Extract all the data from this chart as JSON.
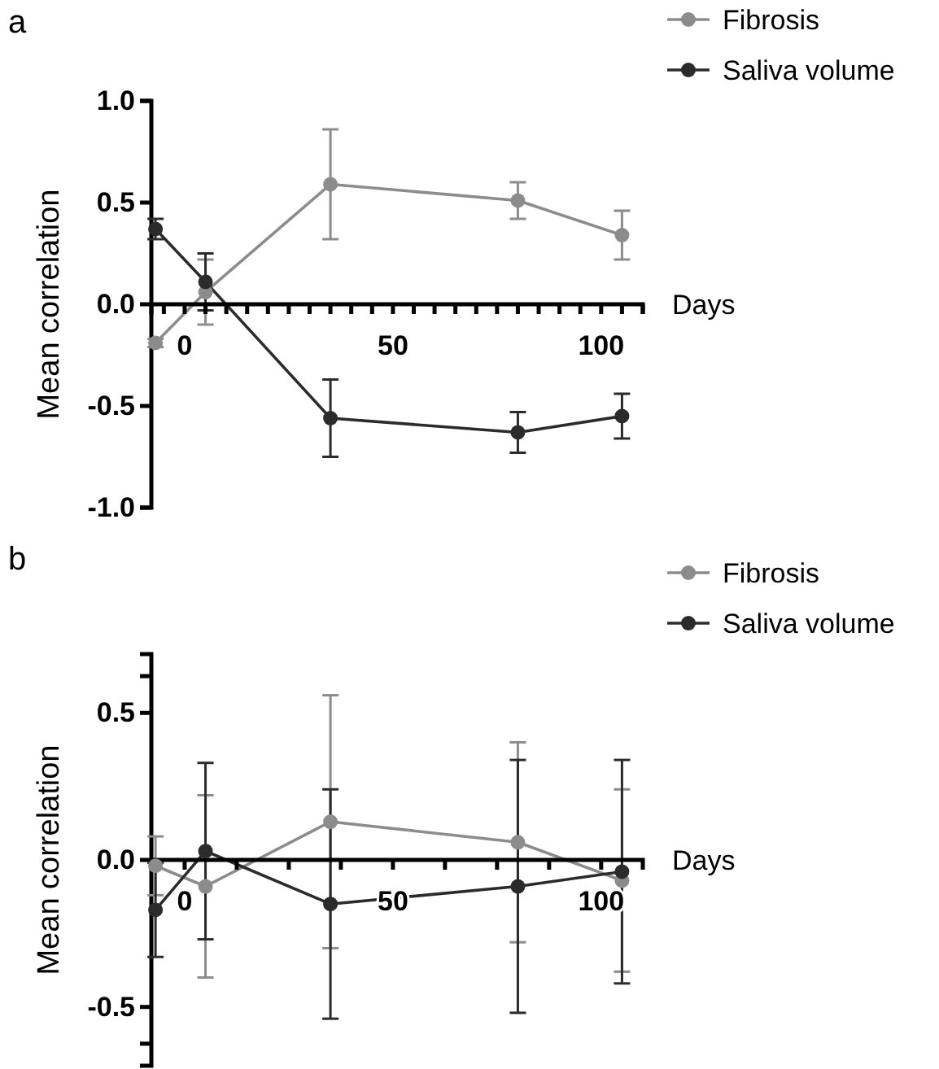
{
  "chart_data": [
    {
      "type": "line",
      "xlabel": "Days",
      "ylabel": "Mean correlation",
      "annotations": [
        "a"
      ],
      "x": [
        -7,
        5,
        35,
        80,
        105
      ],
      "xlim": [
        -8,
        110
      ],
      "ylim": [
        -1,
        1
      ],
      "xticks": [
        {
          "value": -5,
          "label": null
        },
        0,
        {
          "value": 5,
          "label": null
        },
        {
          "value": 10,
          "label": null
        },
        {
          "value": 15,
          "label": null
        },
        {
          "value": 20,
          "label": null
        },
        {
          "value": 25,
          "label": null
        },
        {
          "value": 30,
          "label": null
        },
        {
          "value": 35,
          "label": null
        },
        {
          "value": 40,
          "label": null
        },
        {
          "value": 45,
          "label": null
        },
        50,
        {
          "value": 55,
          "label": null
        },
        {
          "value": 60,
          "label": null
        },
        {
          "value": 65,
          "label": null
        },
        {
          "value": 70,
          "label": null
        },
        {
          "value": 75,
          "label": null
        },
        {
          "value": 80,
          "label": null
        },
        {
          "value": 85,
          "label": null
        },
        {
          "value": 90,
          "label": null
        },
        {
          "value": 95,
          "label": null
        },
        100,
        {
          "value": 105,
          "label": null
        },
        {
          "value": 110,
          "label": null
        }
      ],
      "yticks": [
        {
          "value": -1,
          "label": "-1.0"
        },
        {
          "value": -0.5,
          "label": "-0.5"
        },
        {
          "value": 0,
          "label": "0.0"
        },
        {
          "value": 0.5,
          "label": "0.5"
        },
        {
          "value": 1,
          "label": "1.0"
        }
      ],
      "grid": false,
      "legend": "top right",
      "marker": "circle",
      "line_style": "solid",
      "series": [
        {
          "name": "Fibrosis",
          "color": "#8c8c8c",
          "values": [
            -0.19,
            0.06,
            0.59,
            0.51,
            0.34
          ],
          "errors": [
            0.02,
            0.16,
            0.27,
            0.09,
            0.12
          ]
        },
        {
          "name": "Saliva volume",
          "color": "#2b2b2b",
          "values": [
            0.37,
            0.11,
            -0.56,
            -0.63,
            -0.55
          ],
          "errors": [
            0.05,
            0.14,
            0.19,
            0.1,
            0.11
          ]
        }
      ]
    },
    {
      "type": "line",
      "xlabel": "Days",
      "ylabel": "Mean correlation",
      "annotations": [
        "b"
      ],
      "x": [
        -7,
        5,
        35,
        80,
        105
      ],
      "xlim": [
        -8,
        110
      ],
      "ylim": [
        -0.7,
        0.7
      ],
      "xticks": [
        0,
        {
          "value": 12.5,
          "label": null
        },
        {
          "value": 25,
          "label": null
        },
        {
          "value": 37.5,
          "label": null
        },
        50,
        {
          "value": 62.5,
          "label": null
        },
        {
          "value": 75,
          "label": null
        },
        {
          "value": 87.5,
          "label": null
        },
        100
      ],
      "yticks": [
        {
          "value": -0.625,
          "label": null
        },
        {
          "value": -0.5,
          "label": "-0.5"
        },
        {
          "value": 0,
          "label": "0.0"
        },
        {
          "value": 0.5,
          "label": "0.5"
        },
        {
          "value": 0.625,
          "label": null
        }
      ],
      "grid": false,
      "legend": "top right",
      "marker": "circle",
      "line_style": "solid",
      "series": [
        {
          "name": "Fibrosis",
          "color": "#8c8c8c",
          "values": [
            -0.02,
            -0.09,
            0.13,
            0.06,
            -0.07
          ],
          "errors": [
            0.1,
            0.31,
            0.43,
            0.34,
            0.31
          ]
        },
        {
          "name": "Saliva volume",
          "color": "#2b2b2b",
          "values": [
            -0.17,
            0.03,
            -0.15,
            -0.09,
            -0.04
          ],
          "errors": [
            0.16,
            0.3,
            0.39,
            0.43,
            0.38
          ]
        }
      ]
    }
  ]
}
